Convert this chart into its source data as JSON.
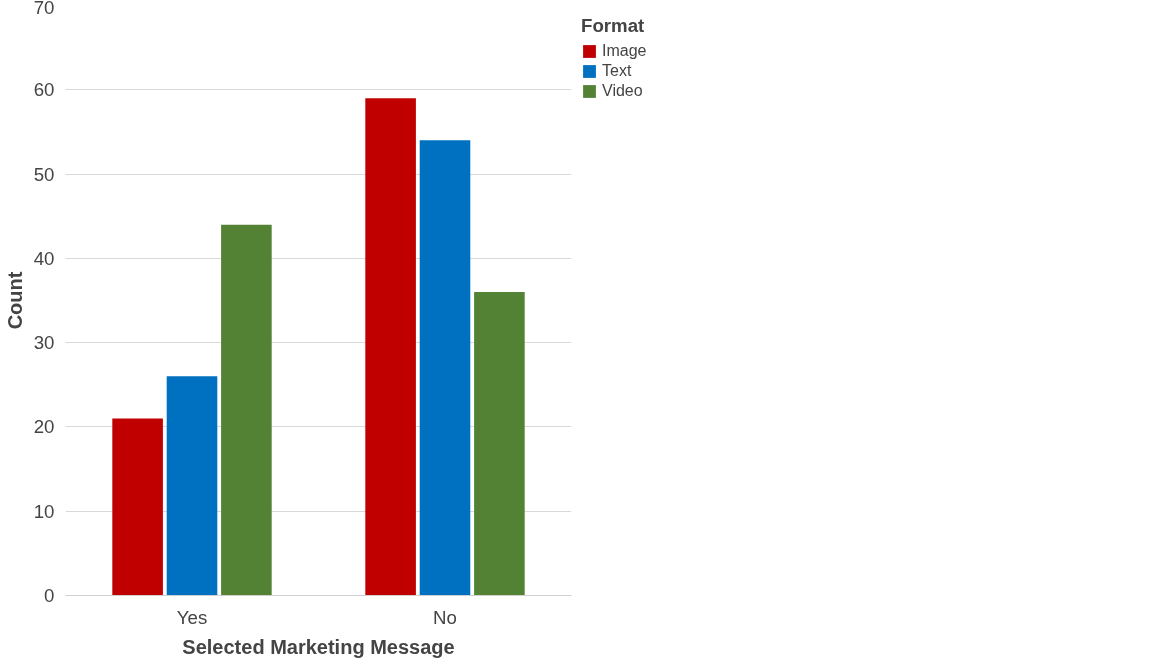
{
  "chart_data": {
    "type": "bar",
    "xlabel": "Selected Marketing Message",
    "ylabel": "Count",
    "legend_title": "Format",
    "categories": [
      "Yes",
      "No"
    ],
    "series": [
      {
        "name": "Image",
        "color": "#c00000",
        "values": [
          21,
          59
        ]
      },
      {
        "name": "Text",
        "color": "#0070c0",
        "values": [
          26,
          54
        ]
      },
      {
        "name": "Video",
        "color": "#548235",
        "values": [
          44,
          36
        ]
      }
    ],
    "ylim": [
      0,
      70
    ],
    "yticks": [
      0,
      10,
      20,
      30,
      40,
      50,
      60,
      70
    ],
    "grid": "y",
    "legend": "right"
  }
}
